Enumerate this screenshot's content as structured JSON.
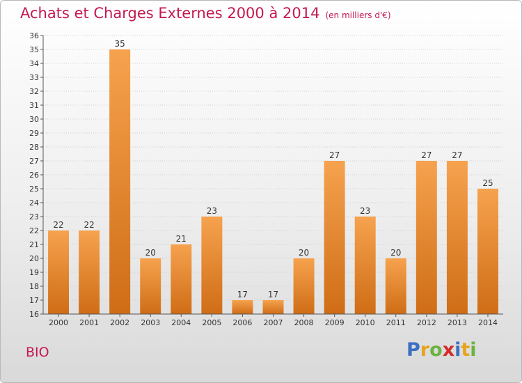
{
  "header": {
    "title": "Achats et Charges Externes 2000 à 2014",
    "subtitle": "(en milliers d'€)"
  },
  "footer": {
    "commune": "BIO",
    "brand_letters": [
      {
        "char": "P",
        "color": "#3a6fc4"
      },
      {
        "char": "r",
        "color": "#e8a21b"
      },
      {
        "char": "o",
        "color": "#6cb33f"
      },
      {
        "char": "x",
        "color": "#d42a2a"
      },
      {
        "char": "i",
        "color": "#3a6fc4"
      },
      {
        "char": "t",
        "color": "#e8a21b"
      },
      {
        "char": "i",
        "color": "#6cb33f"
      }
    ]
  },
  "colors": {
    "bar_light": "#f6a24e",
    "bar_dark": "#cf6d16",
    "title": "#c4184f"
  },
  "chart_data": {
    "type": "bar",
    "categories": [
      "2000",
      "2001",
      "2002",
      "2003",
      "2004",
      "2005",
      "2006",
      "2007",
      "2008",
      "2009",
      "2010",
      "2011",
      "2012",
      "2013",
      "2014"
    ],
    "values": [
      22,
      22,
      35,
      20,
      21,
      23,
      17,
      17,
      20,
      27,
      23,
      20,
      27,
      27,
      25
    ],
    "title": "Achats et Charges Externes 2000 à 2014",
    "xlabel": "",
    "ylabel": "",
    "ylim": [
      16,
      36
    ],
    "yticks": [
      16,
      17,
      18,
      19,
      20,
      21,
      22,
      23,
      24,
      25,
      26,
      27,
      28,
      29,
      30,
      31,
      32,
      33,
      34,
      35,
      36
    ],
    "grid": true,
    "legend": "none"
  }
}
